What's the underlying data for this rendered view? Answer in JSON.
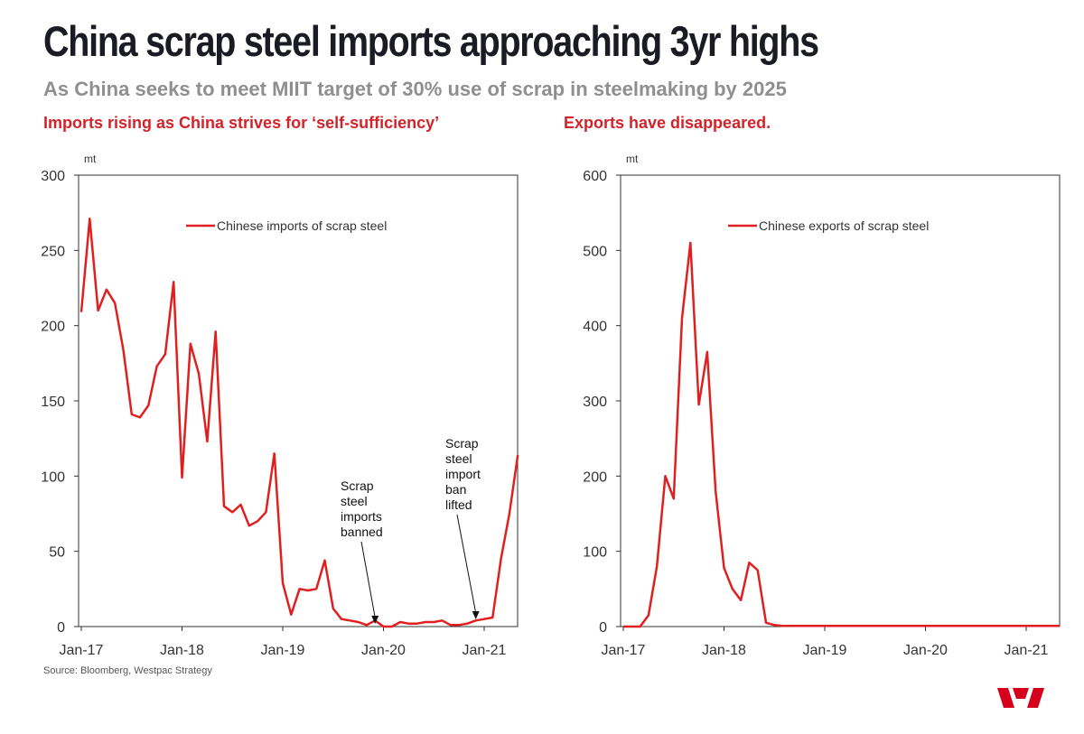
{
  "title": "China scrap steel imports approaching 3yr highs",
  "subtitle": "As China seeks to meet MIIT target of 30% use of scrap in steelmaking by 2025",
  "source": "Source: Bloomberg, Westpac Strategy",
  "colors": {
    "series": "#e02020",
    "panel_title": "#d2232a",
    "subtitle": "#8f8f8f",
    "logo": "#d5001c"
  },
  "chart_data": [
    {
      "type": "line",
      "panel_title": "Imports rising as China strives for ‘self-sufficiency’",
      "unit_label": "mt",
      "legend": "Chinese imports of scrap steel",
      "ylim": [
        0,
        300
      ],
      "yticks": [
        0,
        50,
        100,
        150,
        200,
        250,
        300
      ],
      "xtick_labels": [
        "Jan-17",
        "Jan-18",
        "Jan-19",
        "Jan-20",
        "Jan-21"
      ],
      "x_start": "Jan-17",
      "annotations": [
        {
          "lines": [
            "Scrap",
            "steel",
            "imports",
            "banned"
          ],
          "month_index": 35,
          "value": 0
        },
        {
          "lines": [
            "Scrap",
            "steel",
            "import",
            "ban",
            "lifted"
          ],
          "month_index": 47,
          "value": 3
        }
      ],
      "series": [
        {
          "name": "Chinese imports of scrap steel",
          "values": [
            209,
            271,
            210,
            224,
            215,
            184,
            141,
            139,
            147,
            173,
            181,
            229,
            99,
            188,
            168,
            123,
            196,
            80,
            76,
            81,
            67,
            70,
            76,
            115,
            29,
            8,
            25,
            24,
            25,
            44,
            12,
            5,
            4,
            3,
            1,
            4,
            0,
            0,
            3,
            2,
            2,
            3,
            3,
            4,
            1,
            1,
            2,
            4,
            5,
            6,
            45,
            75,
            114
          ]
        }
      ]
    },
    {
      "type": "line",
      "panel_title": "Exports have disappeared.",
      "unit_label": "mt",
      "legend": "Chinese exports of scrap steel",
      "ylim": [
        0,
        600
      ],
      "yticks": [
        0,
        100,
        200,
        300,
        400,
        500,
        600
      ],
      "xtick_labels": [
        "Jan-17",
        "Jan-18",
        "Jan-19",
        "Jan-20",
        "Jan-21"
      ],
      "x_start": "Jan-17",
      "series": [
        {
          "name": "Chinese exports of scrap steel",
          "values": [
            0,
            0,
            0,
            15,
            80,
            200,
            170,
            410,
            510,
            295,
            365,
            180,
            78,
            50,
            35,
            85,
            75,
            5,
            2,
            1,
            1,
            1,
            1,
            1,
            1,
            1,
            1,
            1,
            1,
            1,
            1,
            1,
            1,
            1,
            1,
            1,
            1,
            1,
            1,
            1,
            1,
            1,
            1,
            1,
            1,
            1,
            1,
            1,
            1,
            1,
            1,
            1,
            1
          ]
        }
      ]
    }
  ]
}
